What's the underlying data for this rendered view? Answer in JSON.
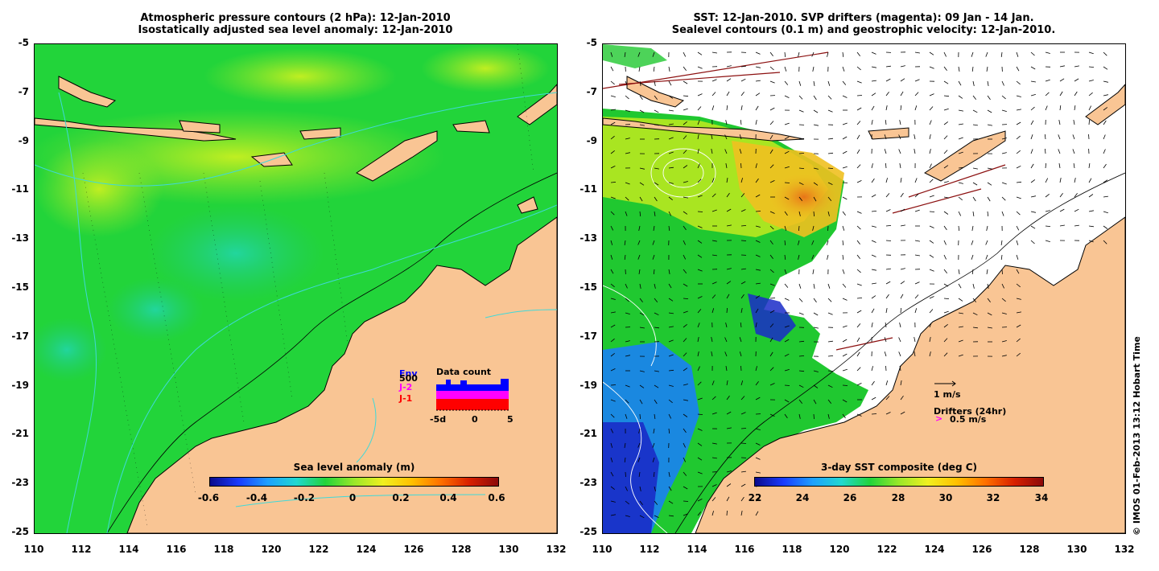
{
  "left_panel": {
    "title_line1": "Atmospheric pressure contours (2 hPa): 12-Jan-2010",
    "title_line2": "Isostatically adjusted sea level anomaly: 12-Jan-2010",
    "colorbar_title": "Sea level anomaly (m)",
    "colorbar_ticks": [
      "-0.6",
      "-0.4",
      "-0.2",
      "0",
      "0.2",
      "0.4",
      "0.6"
    ],
    "data_count": {
      "title": "Data count",
      "series": [
        {
          "name": "Env",
          "color": "#0000ff"
        },
        {
          "name": "J-2",
          "color": "#ff00ff"
        },
        {
          "name": "J-1",
          "color": "#ff0000"
        }
      ],
      "max_label": "500",
      "x_ticks": [
        "-5d",
        "0",
        "5"
      ]
    }
  },
  "right_panel": {
    "title_line1": "SST: 12-Jan-2010. SVP drifters (magenta): 09 Jan - 14 Jan.",
    "title_line2": "Sealevel contours (0.1 m) and geostrophic velocity: 12-Jan-2010.",
    "colorbar_title": "3-day SST composite (deg C)",
    "colorbar_ticks": [
      "22",
      "24",
      "26",
      "28",
      "30",
      "32",
      "34"
    ],
    "velocity_scale": "1 m/s",
    "drifters_label": "Drifters (24hr)",
    "drifter_scale": "0.5 m/s"
  },
  "axes": {
    "y_ticks": [
      "-5",
      "-7",
      "-9",
      "-11",
      "-13",
      "-15",
      "-17",
      "-19",
      "-21",
      "-23",
      "-25"
    ],
    "x_ticks": [
      "110",
      "112",
      "114",
      "116",
      "118",
      "120",
      "122",
      "124",
      "126",
      "128",
      "130",
      "132"
    ]
  },
  "copyright": "© IMOS 01-Feb-2013 13:12 Hobart Time",
  "colors": {
    "land": "#f9c594",
    "ocean_left": "#22d43a",
    "coast": "#000000",
    "pressure_contour": "#3fd9d9"
  }
}
